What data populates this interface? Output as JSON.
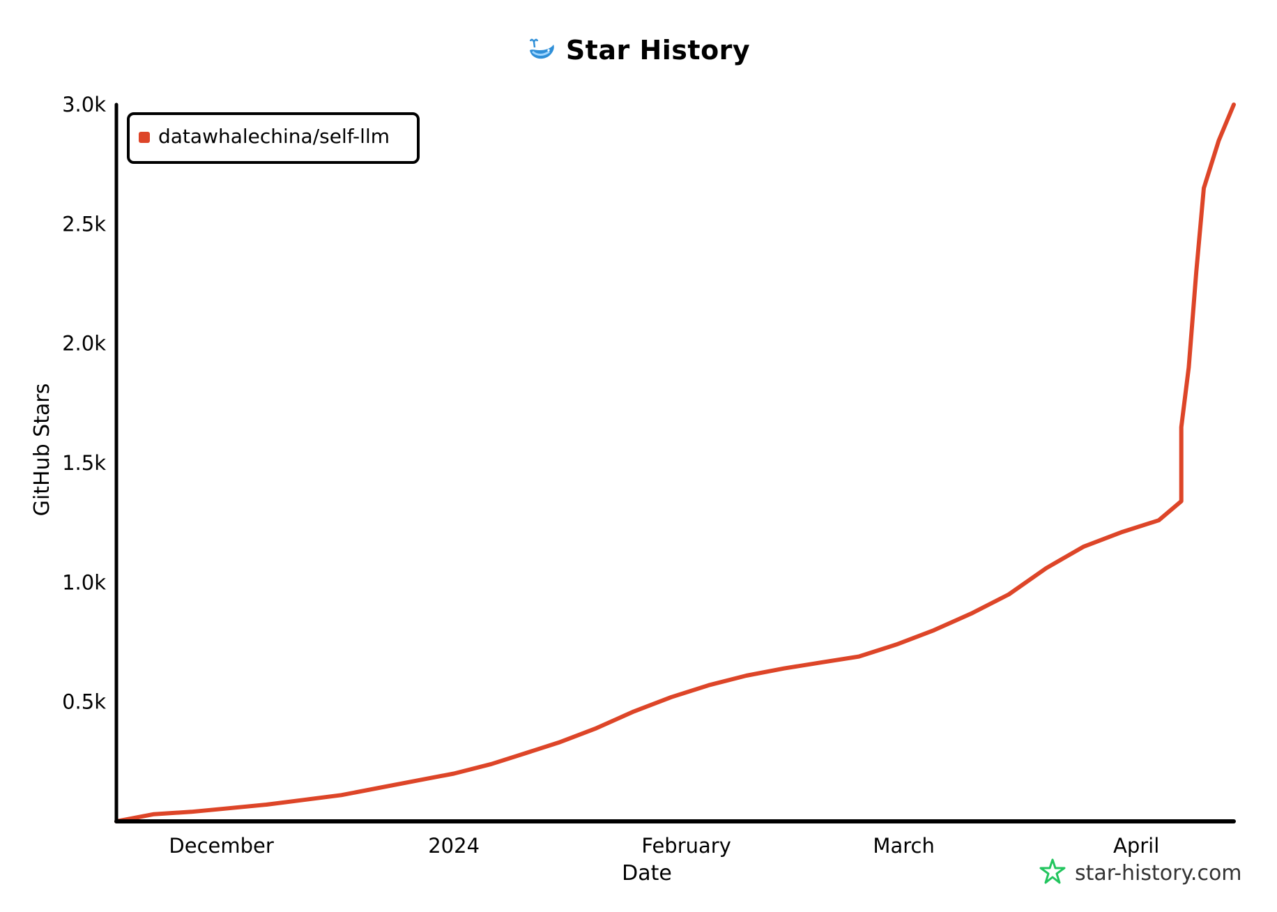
{
  "header": {
    "title": "Star History",
    "logo_icon": "whale-logo-icon"
  },
  "watermark": {
    "text": "star-history.com",
    "icon": "star-outline-icon",
    "color": "#22c55e"
  },
  "chart_data": {
    "type": "line",
    "title": "Star History",
    "xlabel": "Date",
    "ylabel": "GitHub Stars",
    "x_ticks": [
      "December",
      "2024",
      "February",
      "March",
      "April"
    ],
    "x_tick_dates": [
      "2023-12-01",
      "2024-01-01",
      "2024-02-01",
      "2024-03-01",
      "2024-04-01"
    ],
    "xlim": [
      "2023-11-17",
      "2024-04-14"
    ],
    "y_ticks": [
      "0.5k",
      "1.0k",
      "1.5k",
      "2.0k",
      "2.5k",
      "3.0k"
    ],
    "y_tick_values": [
      500,
      1000,
      1500,
      2000,
      2500,
      3000
    ],
    "ylim": [
      0,
      3000
    ],
    "grid": false,
    "legend_position": "top-left",
    "series": [
      {
        "name": "datawhalechina/self-llm",
        "color": "#dd4528",
        "points": [
          [
            "2023-11-17",
            0
          ],
          [
            "2023-11-22",
            30
          ],
          [
            "2023-11-27",
            40
          ],
          [
            "2023-12-02",
            55
          ],
          [
            "2023-12-07",
            70
          ],
          [
            "2023-12-12",
            90
          ],
          [
            "2023-12-17",
            110
          ],
          [
            "2023-12-22",
            140
          ],
          [
            "2023-12-27",
            170
          ],
          [
            "2024-01-01",
            200
          ],
          [
            "2024-01-06",
            240
          ],
          [
            "2024-01-10",
            280
          ],
          [
            "2024-01-15",
            330
          ],
          [
            "2024-01-20",
            390
          ],
          [
            "2024-01-25",
            460
          ],
          [
            "2024-01-30",
            520
          ],
          [
            "2024-02-04",
            570
          ],
          [
            "2024-02-09",
            610
          ],
          [
            "2024-02-14",
            640
          ],
          [
            "2024-02-19",
            665
          ],
          [
            "2024-02-24",
            690
          ],
          [
            "2024-02-29",
            740
          ],
          [
            "2024-03-05",
            800
          ],
          [
            "2024-03-10",
            870
          ],
          [
            "2024-03-15",
            950
          ],
          [
            "2024-03-20",
            1060
          ],
          [
            "2024-03-25",
            1150
          ],
          [
            "2024-03-30",
            1210
          ],
          [
            "2024-04-04",
            1260
          ],
          [
            "2024-04-07",
            1340
          ],
          [
            "2024-04-07",
            1650
          ],
          [
            "2024-04-08",
            1900
          ],
          [
            "2024-04-09",
            2300
          ],
          [
            "2024-04-10",
            2650
          ],
          [
            "2024-04-12",
            2850
          ],
          [
            "2024-04-14",
            3000
          ]
        ]
      }
    ]
  }
}
